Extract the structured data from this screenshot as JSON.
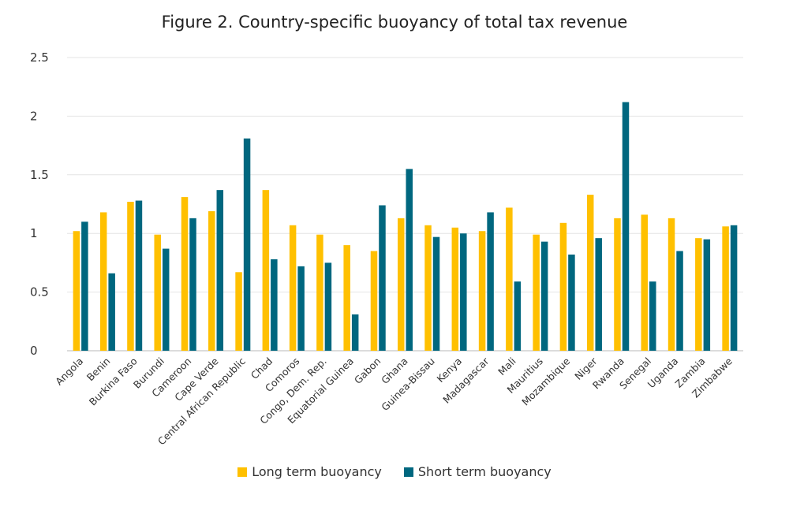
{
  "chart_data": {
    "type": "bar",
    "title": "Figure 2. Country-specific buoyancy of total tax revenue",
    "xlabel": "",
    "ylabel": "",
    "ylim": [
      0,
      2.5
    ],
    "yticks": [
      "0",
      "0.5",
      "1",
      "1.5",
      "2",
      "2.5"
    ],
    "grid": true,
    "legend_position": "bottom",
    "categories": [
      "Angola",
      "Benin",
      "Burkina Faso",
      "Burundi",
      "Cameroon",
      "Cape Verde",
      "Central African Republic",
      "Chad",
      "Comoros",
      "Congo, Dem. Rep.",
      "Equatorial Guinea",
      "Gabon",
      "Ghana",
      "Guinea-Bissau",
      "Kenya",
      "Madagascar",
      "Mali",
      "Mauritius",
      "Mozambique",
      "Niger",
      "Rwanda",
      "Senegal",
      "Uganda",
      "Zambia",
      "Zimbabwe"
    ],
    "series": [
      {
        "name": "Long term buoyancy",
        "color": "#FFC000",
        "values": [
          1.02,
          1.18,
          1.27,
          0.99,
          1.31,
          1.19,
          0.67,
          1.37,
          1.07,
          0.99,
          0.9,
          0.85,
          1.13,
          1.07,
          1.05,
          1.02,
          1.22,
          0.99,
          1.09,
          1.33,
          1.13,
          1.16,
          1.13,
          0.96,
          1.06
        ]
      },
      {
        "name": "Short term buoyancy",
        "color": "#00677F",
        "values": [
          1.1,
          0.66,
          1.28,
          0.87,
          1.13,
          1.37,
          1.81,
          0.78,
          0.72,
          0.75,
          0.31,
          1.24,
          1.55,
          0.97,
          1.0,
          1.18,
          0.59,
          0.93,
          0.82,
          0.96,
          2.12,
          0.59,
          0.85,
          0.95,
          1.07
        ]
      }
    ]
  }
}
